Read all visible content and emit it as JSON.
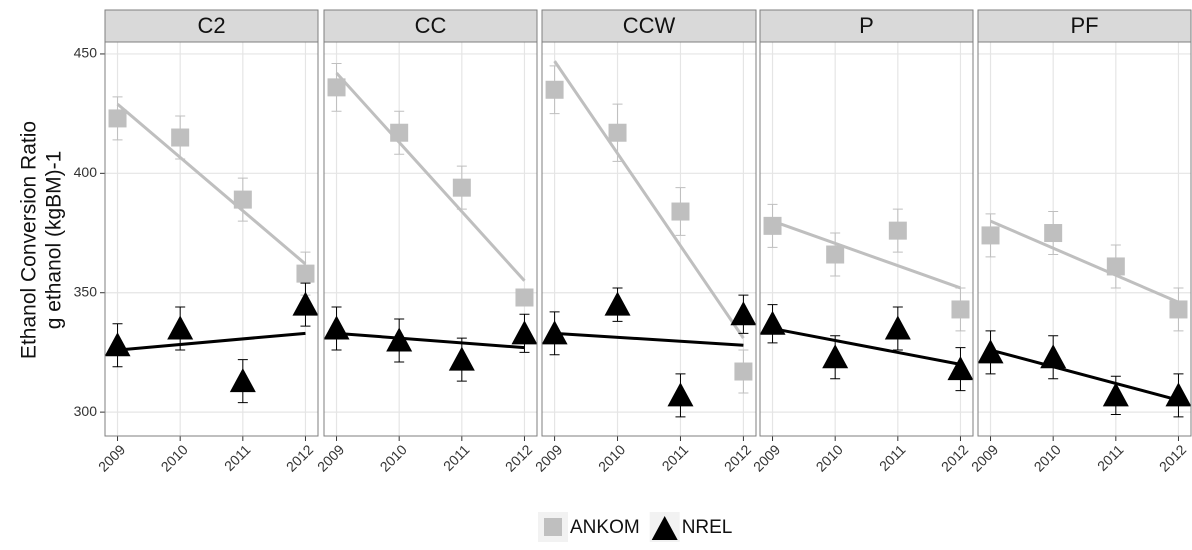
{
  "chart_data": {
    "type": "line",
    "ylabel": [
      "Ethanol Conversion Ratio",
      "g ethanol (kgBM)-1"
    ],
    "x": [
      2009,
      2010,
      2011,
      2012
    ],
    "xlim": [
      2008.8,
      2012.2
    ],
    "xticks": [
      2009,
      2010,
      2011,
      2012
    ],
    "ylim": [
      290,
      455
    ],
    "yticks": [
      300,
      350,
      400,
      450
    ],
    "grid": true,
    "legend": [
      {
        "name": "ANKOM",
        "color": "#bfbfbf",
        "marker": "square"
      },
      {
        "name": "NREL",
        "color": "#000000",
        "marker": "triangle"
      }
    ],
    "facets": [
      {
        "title": "C2",
        "series": [
          {
            "values": [
              423,
              415,
              389,
              358
            ],
            "errors": [
              9,
              9,
              9,
              9
            ],
            "trend": [
              429,
              362
            ]
          },
          {
            "values": [
              328,
              335,
              313,
              345
            ],
            "errors": [
              9,
              9,
              9,
              9
            ],
            "trend": [
              326,
              333
            ]
          }
        ]
      },
      {
        "title": "CC",
        "series": [
          {
            "values": [
              436,
              417,
              394,
              348
            ],
            "errors": [
              10,
              9,
              9,
              0
            ],
            "trend": [
              442,
              355
            ]
          },
          {
            "values": [
              335,
              330,
              322,
              333
            ],
            "errors": [
              9,
              9,
              9,
              8
            ],
            "trend": [
              333,
              327
            ]
          }
        ]
      },
      {
        "title": "CCW",
        "series": [
          {
            "values": [
              435,
              417,
              384,
              317
            ],
            "errors": [
              10,
              12,
              10,
              9
            ],
            "trend": [
              447,
              331
            ]
          },
          {
            "values": [
              333,
              345,
              307,
              341
            ],
            "errors": [
              9,
              7,
              9,
              8
            ],
            "trend": [
              333,
              328
            ]
          }
        ]
      },
      {
        "title": "P",
        "series": [
          {
            "values": [
              378,
              366,
              376,
              343
            ],
            "errors": [
              9,
              9,
              9,
              9
            ],
            "trend": [
              380,
              352
            ]
          },
          {
            "values": [
              337,
              323,
              335,
              318
            ],
            "errors": [
              8,
              9,
              9,
              9
            ],
            "trend": [
              335,
              320
            ]
          }
        ]
      },
      {
        "title": "PF",
        "series": [
          {
            "values": [
              374,
              375,
              361,
              343
            ],
            "errors": [
              9,
              9,
              9,
              9
            ],
            "trend": [
              380,
              346
            ]
          },
          {
            "values": [
              325,
              323,
              307,
              307
            ],
            "errors": [
              9,
              9,
              8,
              9
            ],
            "trend": [
              326,
              305
            ]
          }
        ]
      }
    ]
  }
}
